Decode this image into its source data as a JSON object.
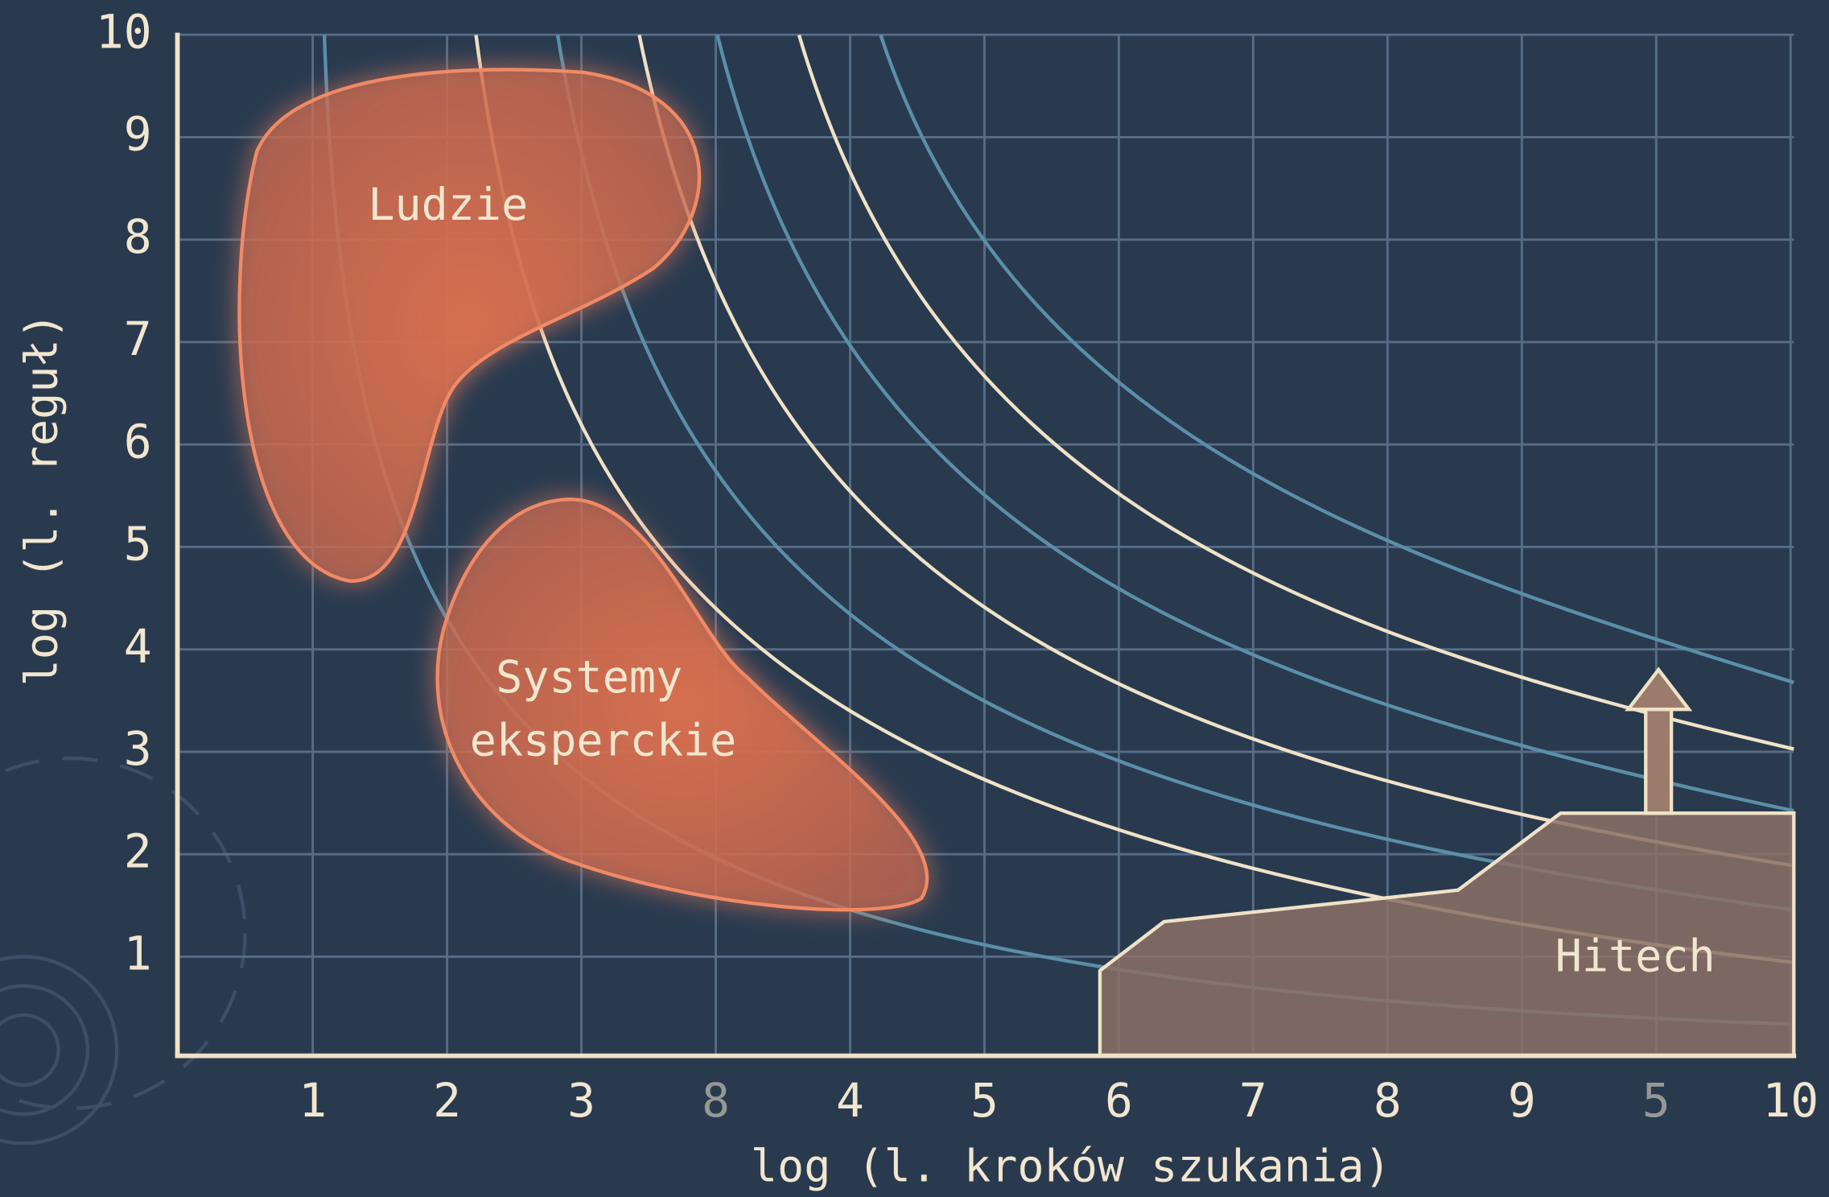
{
  "y_axis": {
    "label": "log (l. reguł)",
    "ticks": [
      "1",
      "2",
      "3",
      "4",
      "5",
      "6",
      "7",
      "8",
      "9",
      "10"
    ]
  },
  "x_axis": {
    "label": "log (l. kroków szukania)",
    "ticks": [
      "1",
      "2",
      "3",
      "8",
      "4",
      "5",
      "6",
      "7",
      "8",
      "9",
      "5",
      "10"
    ]
  },
  "regions": [
    {
      "lines": [
        "Ludzie"
      ]
    },
    {
      "lines": [
        "Systemy",
        "eksperckie"
      ]
    },
    {
      "lines": [
        "Hitech"
      ]
    }
  ]
}
